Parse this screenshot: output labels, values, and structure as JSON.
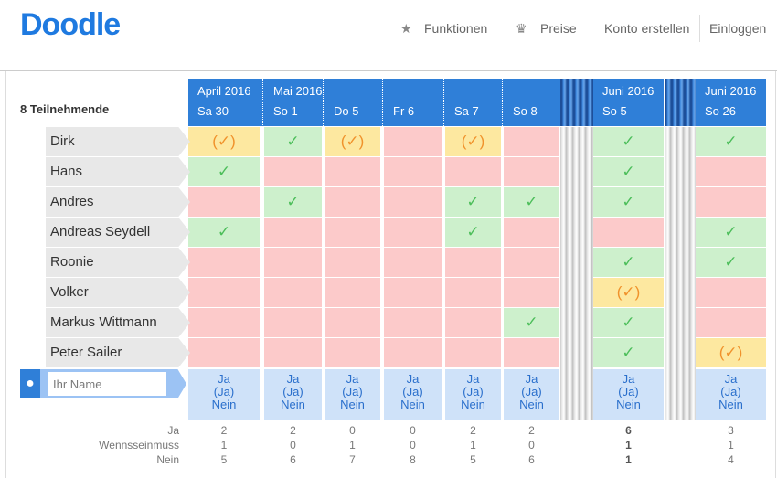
{
  "header": {
    "logo": "Doodle",
    "nav": [
      {
        "icon": "star-icon",
        "label": "Funktionen"
      },
      {
        "icon": "crown-icon",
        "label": "Preise"
      },
      {
        "label": "Konto erstellen"
      },
      {
        "label": "Einloggen"
      }
    ]
  },
  "poll": {
    "participant_count": "8 Teilnehmende",
    "columns": [
      {
        "month": "April 2016",
        "day": "Sa 30"
      },
      {
        "month": "Mai 2016",
        "day": "So 1"
      },
      {
        "month": "",
        "day": "Do 5"
      },
      {
        "month": "",
        "day": "Fr 6"
      },
      {
        "month": "",
        "day": "Sa 7"
      },
      {
        "month": "",
        "day": "So 8"
      },
      {
        "month": "Juni 2016",
        "day": "So 5"
      },
      {
        "month": "Juni 2016",
        "day": "So 26"
      }
    ],
    "participants": [
      {
        "name": "Dirk",
        "votes": [
          "M",
          "Y",
          "M",
          "N",
          "M",
          "N",
          "Y",
          "Y"
        ]
      },
      {
        "name": "Hans",
        "votes": [
          "Y",
          "N",
          "N",
          "N",
          "N",
          "N",
          "Y",
          "N"
        ]
      },
      {
        "name": "Andres",
        "votes": [
          "N",
          "Y",
          "N",
          "N",
          "Y",
          "Y",
          "Y",
          "N"
        ]
      },
      {
        "name": "Andreas Seydell",
        "votes": [
          "Y",
          "N",
          "N",
          "N",
          "Y",
          "N",
          "N",
          "Y"
        ]
      },
      {
        "name": "Roonie",
        "votes": [
          "N",
          "N",
          "N",
          "N",
          "N",
          "N",
          "Y",
          "Y"
        ]
      },
      {
        "name": "Volker",
        "votes": [
          "N",
          "N",
          "N",
          "N",
          "N",
          "N",
          "M",
          "N"
        ]
      },
      {
        "name": "Markus Wittmann",
        "votes": [
          "N",
          "N",
          "N",
          "N",
          "N",
          "Y",
          "Y",
          "N"
        ]
      },
      {
        "name": "Peter Sailer",
        "votes": [
          "N",
          "N",
          "N",
          "N",
          "N",
          "N",
          "Y",
          "M"
        ]
      }
    ],
    "name_placeholder": "Ihr Name",
    "options": [
      "Ja",
      "(Ja)",
      "Nein"
    ],
    "totals": {
      "labels": [
        "Ja",
        "Wennsseinmuss",
        "Nein"
      ],
      "values": [
        [
          2,
          1,
          5
        ],
        [
          2,
          0,
          6
        ],
        [
          0,
          1,
          7
        ],
        [
          0,
          0,
          8
        ],
        [
          2,
          1,
          5
        ],
        [
          2,
          0,
          6
        ],
        [
          6,
          1,
          1
        ],
        [
          3,
          1,
          4
        ]
      ]
    },
    "best_column": 6,
    "symbols": {
      "Y": "✓",
      "M": "(✓)",
      "N": ""
    }
  }
}
